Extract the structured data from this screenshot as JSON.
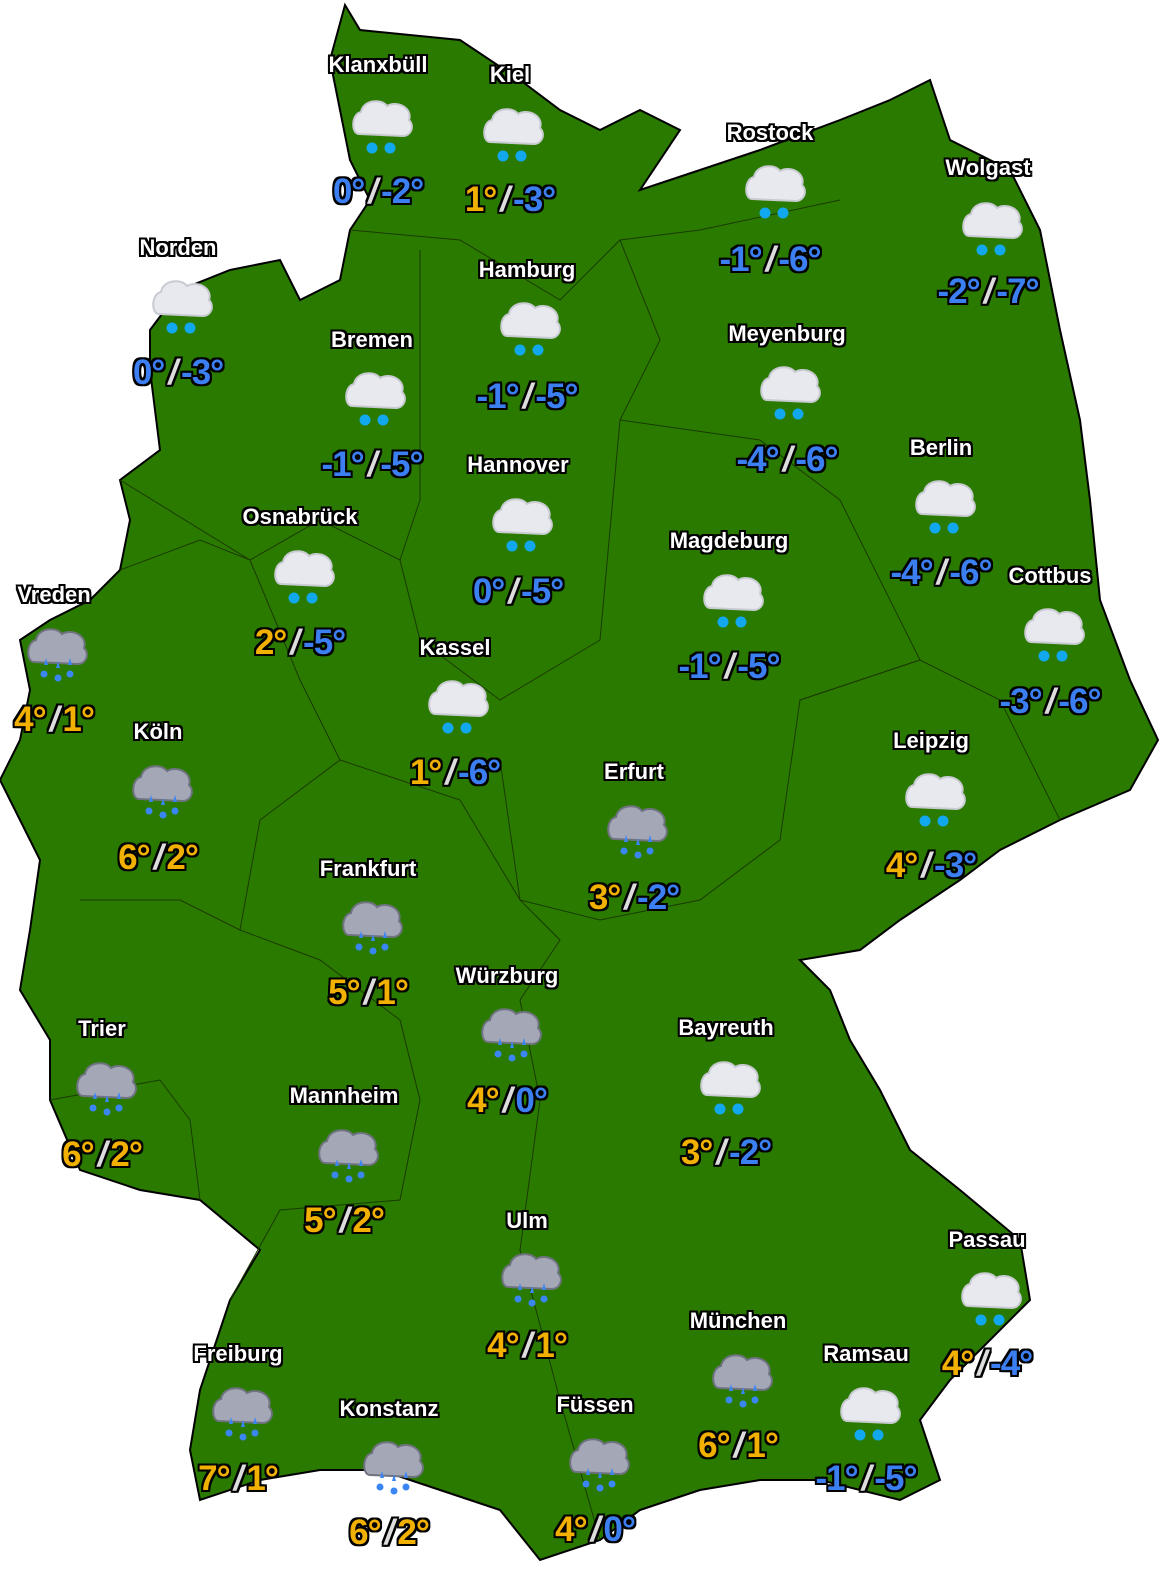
{
  "colors": {
    "land": "#2a7a00",
    "border": "#1a3a00",
    "warm": "#f2b100",
    "cold": "#3b7ff2",
    "snow_dot": "#12a8f0",
    "rain_drop": "#3b86f5",
    "snow_cloud": "#e8e9ee",
    "rain_cloud": "#a4a8b6"
  },
  "cities": [
    {
      "name": "Klanxbüll",
      "icon": "snow",
      "high": "0°",
      "low": "-2°",
      "hi_val": 0,
      "lo_val": -2
    },
    {
      "name": "Kiel",
      "icon": "snow",
      "high": "1°",
      "low": "-3°",
      "hi_val": 1,
      "lo_val": -3
    },
    {
      "name": "Rostock",
      "icon": "snow",
      "high": "-1°",
      "low": "-6°",
      "hi_val": -1,
      "lo_val": -6
    },
    {
      "name": "Wolgast",
      "icon": "snow",
      "high": "-2°",
      "low": "-7°",
      "hi_val": -2,
      "lo_val": -7
    },
    {
      "name": "Norden",
      "icon": "snow",
      "high": "0°",
      "low": "-3°",
      "hi_val": 0,
      "lo_val": -3
    },
    {
      "name": "Hamburg",
      "icon": "snow",
      "high": "-1°",
      "low": "-5°",
      "hi_val": -1,
      "lo_val": -5
    },
    {
      "name": "Bremen",
      "icon": "snow",
      "high": "-1°",
      "low": "-5°",
      "hi_val": -1,
      "lo_val": -5
    },
    {
      "name": "Meyenburg",
      "icon": "snow",
      "high": "-4°",
      "low": "-6°",
      "hi_val": -4,
      "lo_val": -6
    },
    {
      "name": "Hannover",
      "icon": "snow",
      "high": "0°",
      "low": "-5°",
      "hi_val": 0,
      "lo_val": -5
    },
    {
      "name": "Berlin",
      "icon": "snow",
      "high": "-4°",
      "low": "-6°",
      "hi_val": -4,
      "lo_val": -6
    },
    {
      "name": "Osnabrück",
      "icon": "snow",
      "high": "2°",
      "low": "-5°",
      "hi_val": 2,
      "lo_val": -5
    },
    {
      "name": "Magdeburg",
      "icon": "snow",
      "high": "-1°",
      "low": "-5°",
      "hi_val": -1,
      "lo_val": -5
    },
    {
      "name": "Cottbus",
      "icon": "snow",
      "high": "-3°",
      "low": "-6°",
      "hi_val": -3,
      "lo_val": -6
    },
    {
      "name": "Vreden",
      "icon": "rain",
      "high": "4°",
      "low": "1°",
      "hi_val": 4,
      "lo_val": 1
    },
    {
      "name": "Kassel",
      "icon": "snow",
      "high": "1°",
      "low": "-6°",
      "hi_val": 1,
      "lo_val": -6
    },
    {
      "name": "Köln",
      "icon": "rain",
      "high": "6°",
      "low": "2°",
      "hi_val": 6,
      "lo_val": 2
    },
    {
      "name": "Leipzig",
      "icon": "snow",
      "high": "4°",
      "low": "-3°",
      "hi_val": 4,
      "lo_val": -3
    },
    {
      "name": "Erfurt",
      "icon": "rain",
      "high": "3°",
      "low": "-2°",
      "hi_val": 3,
      "lo_val": -2
    },
    {
      "name": "Frankfurt",
      "icon": "rain",
      "high": "5°",
      "low": "1°",
      "hi_val": 5,
      "lo_val": 1
    },
    {
      "name": "Würzburg",
      "icon": "rain",
      "high": "4°",
      "low": "0°",
      "hi_val": 4,
      "lo_val": 0
    },
    {
      "name": "Trier",
      "icon": "rain",
      "high": "6°",
      "low": "2°",
      "hi_val": 6,
      "lo_val": 2
    },
    {
      "name": "Bayreuth",
      "icon": "snow",
      "high": "3°",
      "low": "-2°",
      "hi_val": 3,
      "lo_val": -2
    },
    {
      "name": "Mannheim",
      "icon": "rain",
      "high": "5°",
      "low": "2°",
      "hi_val": 5,
      "lo_val": 2
    },
    {
      "name": "Ulm",
      "icon": "rain",
      "high": "4°",
      "low": "1°",
      "hi_val": 4,
      "lo_val": 1
    },
    {
      "name": "Passau",
      "icon": "snow",
      "high": "4°",
      "low": "-4°",
      "hi_val": 4,
      "lo_val": -4
    },
    {
      "name": "München",
      "icon": "rain",
      "high": "6°",
      "low": "1°",
      "hi_val": 6,
      "lo_val": 1
    },
    {
      "name": "Freiburg",
      "icon": "rain",
      "high": "7°",
      "low": "1°",
      "hi_val": 7,
      "lo_val": 1
    },
    {
      "name": "Ramsau",
      "icon": "snow",
      "high": "-1°",
      "low": "-5°",
      "hi_val": -1,
      "lo_val": -5
    },
    {
      "name": "Konstanz",
      "icon": "rain",
      "high": "6°",
      "low": "2°",
      "hi_val": 6,
      "lo_val": 2
    },
    {
      "name": "Füssen",
      "icon": "rain",
      "high": "4°",
      "low": "0°",
      "hi_val": 4,
      "lo_val": 0
    }
  ],
  "separator": "/"
}
